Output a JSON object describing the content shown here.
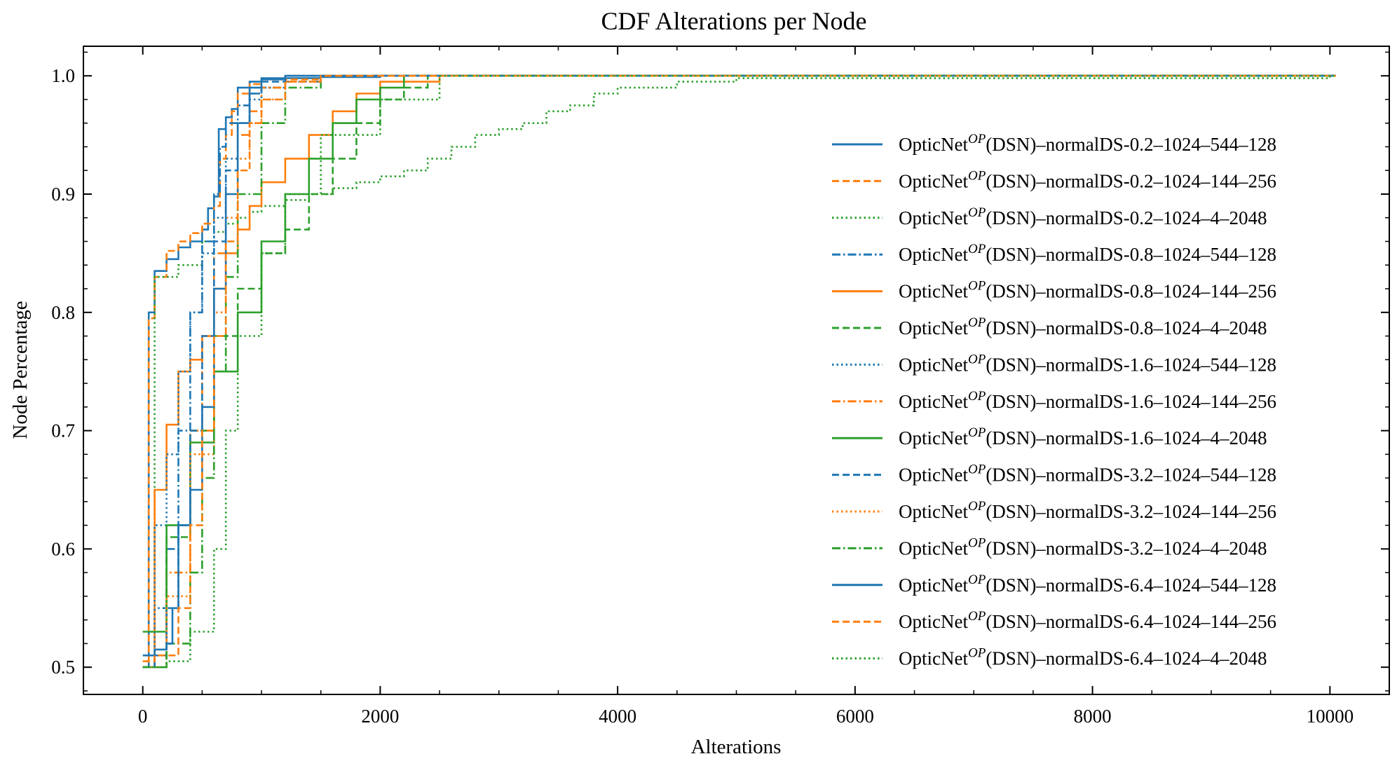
{
  "chart_data": {
    "type": "line",
    "title": "CDF Alterations per Node",
    "xlabel": "Alterations",
    "ylabel": "Node Percentage",
    "xlim": [
      -500,
      10500
    ],
    "ylim": [
      0.477,
      1.025
    ],
    "xticks": [
      0,
      2000,
      4000,
      6000,
      8000,
      10000
    ],
    "yticks": [
      0.5,
      0.6,
      0.7,
      0.8,
      0.9,
      1.0
    ],
    "xtick_labels": [
      "0",
      "2000",
      "4000",
      "6000",
      "8000",
      "10000"
    ],
    "ytick_labels": [
      "0.5",
      "0.6",
      "0.7",
      "0.8",
      "0.9",
      "1.0"
    ],
    "grid": false,
    "legend_position": "center-right",
    "legend_prefix": "OpticNet",
    "legend_superscript": "OP",
    "legend_suffix_head": "(DSN)–normalDS-",
    "colors": {
      "blue": "#1f77b4",
      "orange": "#ff7f0e",
      "green": "#2ca02c"
    },
    "series": [
      {
        "name": "0.2–1024–544–128",
        "color": "blue",
        "dash": "solid",
        "x": [
          0,
          50,
          100,
          200,
          300,
          400,
          500,
          550,
          600,
          640,
          700,
          750,
          800,
          900,
          1000,
          1500,
          2000
        ],
        "y": [
          0.5,
          0.8,
          0.835,
          0.845,
          0.855,
          0.86,
          0.87,
          0.888,
          0.898,
          0.955,
          0.965,
          0.972,
          0.99,
          0.995,
          0.998,
          0.999,
          1.0
        ]
      },
      {
        "name": "0.2–1024–144–256",
        "color": "orange",
        "dash": "dashed",
        "x": [
          0,
          50,
          100,
          200,
          300,
          400,
          500,
          600,
          650,
          700,
          750,
          800,
          900,
          1000,
          1500
        ],
        "y": [
          0.5,
          0.795,
          0.83,
          0.852,
          0.86,
          0.867,
          0.875,
          0.89,
          0.93,
          0.95,
          0.97,
          0.985,
          0.993,
          0.997,
          1.0
        ]
      },
      {
        "name": "0.2–1024–4–2048",
        "color": "green",
        "dash": "dotted",
        "x": [
          0,
          100,
          300,
          500,
          600,
          700,
          800,
          900,
          1000,
          1200,
          1400,
          1600,
          1800,
          2000,
          2200,
          2400,
          2600,
          2800,
          3000,
          3200,
          3400,
          3600,
          3800,
          4000,
          4500,
          5000,
          10000
        ],
        "y": [
          0.5,
          0.83,
          0.84,
          0.86,
          0.868,
          0.875,
          0.88,
          0.885,
          0.89,
          0.895,
          0.9,
          0.905,
          0.91,
          0.915,
          0.92,
          0.93,
          0.94,
          0.95,
          0.955,
          0.96,
          0.97,
          0.975,
          0.985,
          0.99,
          0.995,
          0.998,
          1.0
        ]
      },
      {
        "name": "0.8–1024–544–128",
        "color": "blue",
        "dash": "dashdot",
        "x": [
          0,
          100,
          200,
          300,
          400,
          500,
          600,
          650,
          700,
          800,
          900,
          1000,
          1200,
          1500
        ],
        "y": [
          0.5,
          0.55,
          0.6,
          0.7,
          0.8,
          0.86,
          0.9,
          0.94,
          0.96,
          0.975,
          0.985,
          0.99,
          0.995,
          1.0
        ]
      },
      {
        "name": "0.8–1024–144–256",
        "color": "orange",
        "dash": "solid",
        "x": [
          0,
          100,
          200,
          300,
          400,
          500,
          600,
          700,
          800,
          900,
          1000,
          1200,
          1400,
          1600,
          1800,
          2000,
          2500
        ],
        "y": [
          0.5,
          0.65,
          0.705,
          0.75,
          0.76,
          0.78,
          0.82,
          0.85,
          0.87,
          0.89,
          0.91,
          0.93,
          0.95,
          0.97,
          0.985,
          0.995,
          1.0
        ]
      },
      {
        "name": "0.8–1024–4–2048",
        "color": "green",
        "dash": "dashed",
        "x": [
          0,
          200,
          400,
          600,
          800,
          1000,
          1200,
          1400,
          1600,
          1800,
          2000,
          2200,
          2400
        ],
        "y": [
          0.5,
          0.61,
          0.7,
          0.78,
          0.82,
          0.85,
          0.87,
          0.9,
          0.93,
          0.96,
          0.98,
          0.99,
          1.0
        ]
      },
      {
        "name": "1.6–1024–544–128",
        "color": "blue",
        "dash": "dotted",
        "x": [
          0,
          100,
          200,
          300,
          400,
          500,
          600,
          700,
          800,
          900,
          1000,
          1200
        ],
        "y": [
          0.5,
          0.62,
          0.68,
          0.75,
          0.8,
          0.85,
          0.88,
          0.93,
          0.96,
          0.98,
          0.99,
          1.0
        ]
      },
      {
        "name": "1.6–1024–144–256",
        "color": "orange",
        "dash": "dashdot",
        "x": [
          0,
          200,
          400,
          500,
          600,
          700,
          800,
          900,
          1000,
          1200
        ],
        "y": [
          0.5,
          0.58,
          0.7,
          0.78,
          0.85,
          0.9,
          0.95,
          0.97,
          0.99,
          1.0
        ]
      },
      {
        "name": "1.6–1024–4–2048",
        "color": "green",
        "dash": "solid",
        "x": [
          0,
          200,
          400,
          600,
          800,
          1000,
          1200,
          1400,
          1600,
          1800,
          2000,
          2200
        ],
        "y": [
          0.53,
          0.62,
          0.69,
          0.75,
          0.8,
          0.86,
          0.9,
          0.93,
          0.96,
          0.98,
          0.99,
          1.0
        ]
      },
      {
        "name": "3.2–1024–544–128",
        "color": "blue",
        "dash": "dashed",
        "x": [
          0,
          100,
          200,
          300,
          400,
          500,
          600,
          700,
          800,
          900,
          1000,
          1200
        ],
        "y": [
          0.5,
          0.51,
          0.55,
          0.62,
          0.7,
          0.78,
          0.86,
          0.92,
          0.96,
          0.985,
          0.995,
          1.0
        ]
      },
      {
        "name": "3.2–1024–144–256",
        "color": "orange",
        "dash": "dotted",
        "x": [
          0,
          200,
          400,
          600,
          700,
          800,
          900,
          1000,
          1200,
          1500
        ],
        "y": [
          0.5,
          0.56,
          0.68,
          0.8,
          0.88,
          0.93,
          0.96,
          0.98,
          0.995,
          1.0
        ]
      },
      {
        "name": "3.2–1024–4–2048",
        "color": "green",
        "dash": "dashdot",
        "x": [
          0,
          200,
          400,
          500,
          600,
          700,
          800,
          1000,
          1200,
          1500
        ],
        "y": [
          0.5,
          0.52,
          0.58,
          0.66,
          0.75,
          0.83,
          0.9,
          0.96,
          0.99,
          1.0
        ]
      },
      {
        "name": "6.4–1024–544–128",
        "color": "blue",
        "dash": "solid",
        "x": [
          0,
          100,
          200,
          250,
          300,
          400,
          500,
          600,
          700,
          800,
          900,
          1000,
          1200
        ],
        "y": [
          0.51,
          0.515,
          0.52,
          0.55,
          0.62,
          0.65,
          0.72,
          0.82,
          0.9,
          0.96,
          0.99,
          0.997,
          1.0
        ]
      },
      {
        "name": "6.4–1024–144–256",
        "color": "orange",
        "dash": "dashed",
        "x": [
          0,
          100,
          200,
          300,
          400,
          500,
          600,
          700,
          800,
          900,
          1000,
          1200,
          1500
        ],
        "y": [
          0.505,
          0.51,
          0.51,
          0.55,
          0.62,
          0.7,
          0.78,
          0.86,
          0.92,
          0.96,
          0.98,
          0.995,
          1.0
        ]
      },
      {
        "name": "6.4–1024–4–2048",
        "color": "green",
        "dash": "dotted",
        "x": [
          0,
          200,
          400,
          600,
          700,
          800,
          1000,
          1200,
          1500,
          2000,
          2500
        ],
        "y": [
          0.5,
          0.505,
          0.53,
          0.6,
          0.7,
          0.78,
          0.85,
          0.9,
          0.95,
          0.98,
          1.0
        ]
      }
    ]
  }
}
